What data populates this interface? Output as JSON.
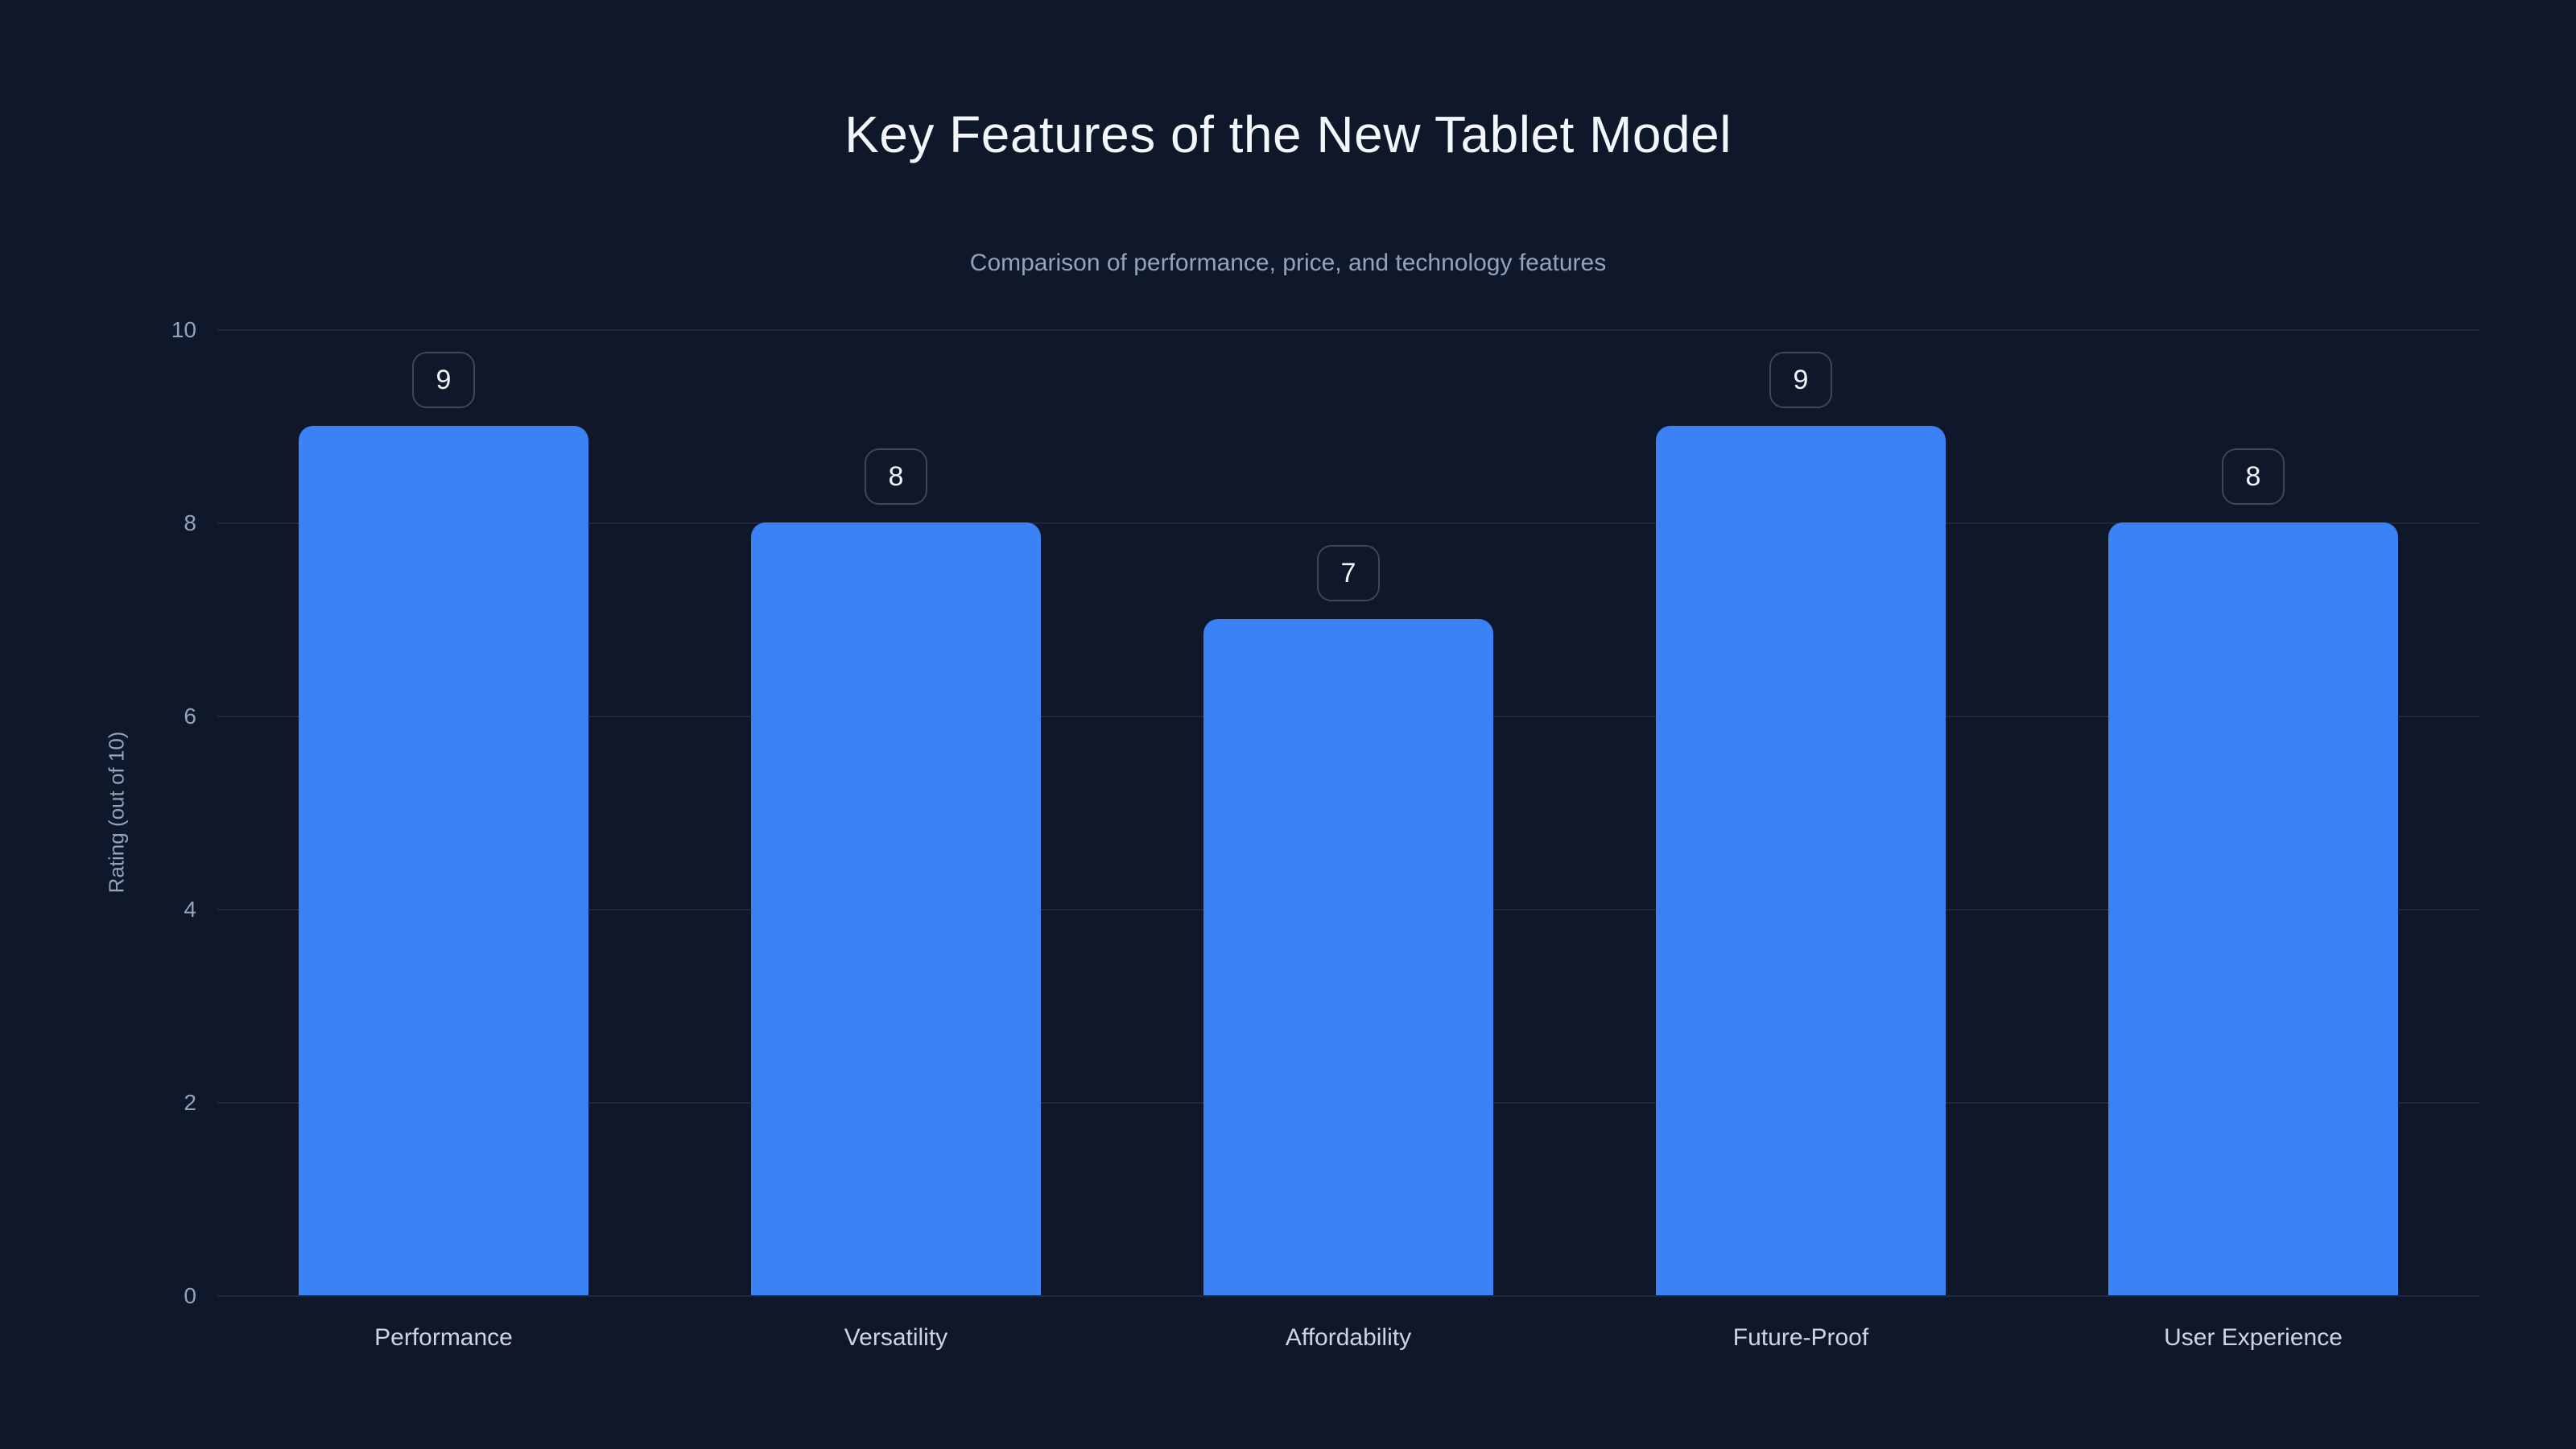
{
  "header": {
    "title": "Key Features of the New Tablet Model",
    "subtitle": "Comparison of performance, price, and technology features"
  },
  "chart_data": {
    "type": "bar",
    "title": "Key Features of the New Tablet Model",
    "subtitle": "Comparison of performance, price, and technology features",
    "categories": [
      "Performance",
      "Versatility",
      "Affordability",
      "Future-Proof",
      "User Experience"
    ],
    "values": [
      9,
      8,
      7,
      9,
      8
    ],
    "xlabel": "",
    "ylabel": "Rating (out of 10)",
    "ylim": [
      0,
      10
    ],
    "yticks": [
      0,
      2,
      4,
      6,
      8,
      10
    ],
    "grid": "horizontal",
    "legend": "none",
    "value_labels": "boxed badges above bars",
    "colors": {
      "background": "#0f172a",
      "bar": "#3b82f6",
      "gridline": "rgba(148,163,184,0.13)",
      "title_text": "#f3f6fa",
      "subtitle_text": "#94a3b8",
      "tick_text": "#94a3b8",
      "category_text": "#cbd5e1",
      "badge_border": "#3c4858",
      "badge_text": "#f1f5f9"
    }
  }
}
